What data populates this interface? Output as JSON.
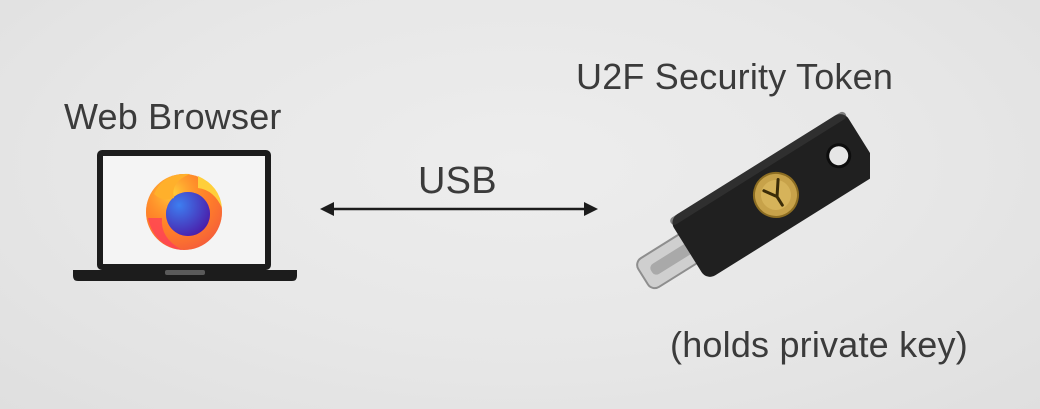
{
  "labels": {
    "browser": "Web Browser",
    "token": "U2F Security Token",
    "connection": "USB",
    "token_note": "(holds private key)"
  },
  "icons": {
    "browser_logo": "firefox-logo-icon",
    "laptop": "laptop-icon",
    "token": "usb-security-key-icon",
    "connection_arrow": "double-headed-arrow-icon"
  },
  "colors": {
    "background": "#e6e6e6",
    "text": "#3b3b3b",
    "outline": "#1c1c1c",
    "token_body": "#202020",
    "token_gold": "#c7a24a"
  }
}
